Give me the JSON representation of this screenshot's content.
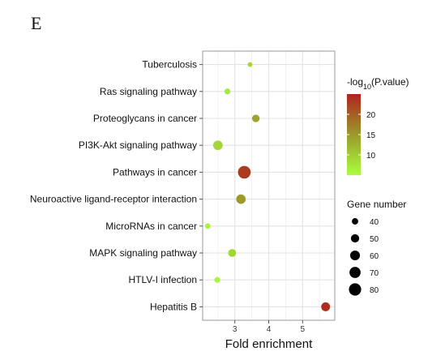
{
  "panel_label": "E",
  "chart_data": {
    "type": "scatter",
    "title": "",
    "xlabel": "Fold enrichment",
    "ylabel": "",
    "xlim": [
      2.05,
      5.95
    ],
    "x_ticks": [
      3,
      4,
      5
    ],
    "grid": true,
    "categories": [
      "Tuberculosis",
      "Ras signaling pathway",
      "Proteoglycans in cancer",
      "PI3K-Akt signaling pathway",
      "Pathways in cancer",
      "Neuroactive ligand-receptor interaction",
      "MicroRNAs in cancer",
      "MAPK signaling pathway",
      "HTLV-I infection",
      "Hepatitis B"
    ],
    "points": [
      {
        "category": "Tuberculosis",
        "fold_enrichment": 3.45,
        "neg_log10_p": 9,
        "gene_number": 33
      },
      {
        "category": "Ras signaling pathway",
        "fold_enrichment": 2.78,
        "neg_log10_p": 7,
        "gene_number": 38
      },
      {
        "category": "Proteoglycans in cancer",
        "fold_enrichment": 3.62,
        "neg_log10_p": 14,
        "gene_number": 46
      },
      {
        "category": "PI3K-Akt signaling pathway",
        "fold_enrichment": 2.5,
        "neg_log10_p": 9,
        "gene_number": 58
      },
      {
        "category": "Pathways in cancer",
        "fold_enrichment": 3.28,
        "neg_log10_p": 23,
        "gene_number": 84
      },
      {
        "category": "Neuroactive ligand-receptor interaction",
        "fold_enrichment": 3.18,
        "neg_log10_p": 15,
        "gene_number": 58
      },
      {
        "category": "MicroRNAs in cancer",
        "fold_enrichment": 2.2,
        "neg_log10_p": 6,
        "gene_number": 36
      },
      {
        "category": "MAPK signaling pathway",
        "fold_enrichment": 2.92,
        "neg_log10_p": 9,
        "gene_number": 48
      },
      {
        "category": "HTLV-I infection",
        "fold_enrichment": 2.48,
        "neg_log10_p": 6,
        "gene_number": 37
      },
      {
        "category": "Hepatitis B",
        "fold_enrichment": 5.68,
        "neg_log10_p": 24,
        "gene_number": 54
      }
    ],
    "color_legend": {
      "title_prefix": "-log",
      "title_subscript": "10",
      "title_suffix": "(P.value)",
      "range": [
        5,
        25
      ],
      "ticks": [
        10,
        15,
        20
      ],
      "low_color": "#a8ff3e",
      "high_color": "#b0231f"
    },
    "size_legend": {
      "title": "Gene number",
      "values": [
        40,
        50,
        60,
        70,
        80
      ]
    },
    "colors": {
      "panel_background": "#ffffff",
      "grid": "#e3e3e3",
      "border": "#999999"
    }
  }
}
